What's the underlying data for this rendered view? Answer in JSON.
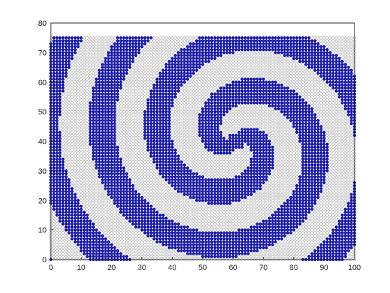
{
  "chart_data": {
    "type": "scatter",
    "title": "",
    "xlabel": "",
    "ylabel": "",
    "xlim": [
      0,
      100
    ],
    "ylim": [
      0,
      80
    ],
    "xticks": [
      0,
      10,
      20,
      30,
      40,
      50,
      60,
      70,
      80,
      90,
      100
    ],
    "yticks": [
      0,
      10,
      20,
      30,
      40,
      50,
      60,
      70,
      80
    ],
    "grid": false,
    "marker": "circle",
    "grid_points": {
      "x_range": [
        0,
        100
      ],
      "y_range": [
        0,
        75
      ],
      "step": 1
    },
    "swirl": {
      "center": [
        61,
        40
      ],
      "arms": 2,
      "twist_per_unit_radius": 0.055,
      "description_values": "lattice points colored by two-armed spiral pattern"
    },
    "series": [
      {
        "color": "#1f1fa3",
        "values": "points inside spiral arms"
      },
      {
        "color": "#bdbdbd",
        "values": "points outside spiral arms"
      }
    ]
  }
}
